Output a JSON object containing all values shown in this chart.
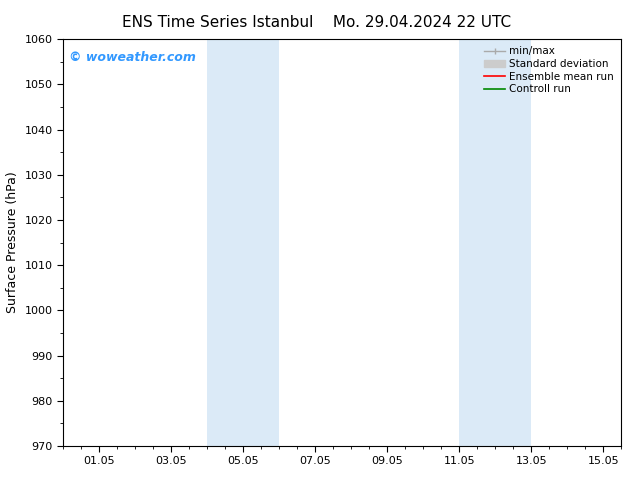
{
  "title_left": "ENS Time Series Istanbul",
  "title_right": "Mo. 29.04.2024 22 UTC",
  "ylabel": "Surface Pressure (hPa)",
  "ylim": [
    970,
    1060
  ],
  "yticks": [
    970,
    980,
    990,
    1000,
    1010,
    1020,
    1030,
    1040,
    1050,
    1060
  ],
  "xstart_day": 29.917,
  "xend_day": 15.5,
  "xlim_start": -0.1,
  "xlim_end": 15.6,
  "xtick_values": [
    1.0,
    3.0,
    5.0,
    7.0,
    9.0,
    11.0,
    13.0,
    15.0
  ],
  "xtick_labels": [
    "01.05",
    "03.05",
    "05.05",
    "07.05",
    "09.05",
    "11.05",
    "13.05",
    "15.05"
  ],
  "shaded_bands": [
    {
      "x_start": 4.0,
      "x_end": 6.0
    },
    {
      "x_start": 11.0,
      "x_end": 13.0
    }
  ],
  "shaded_color": "#dbeaf7",
  "background_color": "#ffffff",
  "watermark_text": "© woweather.com",
  "watermark_color": "#3399ff",
  "legend_items": [
    {
      "label": "min/max",
      "type": "minmax",
      "color": "#aaaaaa"
    },
    {
      "label": "Standard deviation",
      "type": "patch",
      "color": "#cccccc"
    },
    {
      "label": "Ensemble mean run",
      "type": "line",
      "color": "#ff0000"
    },
    {
      "label": "Controll run",
      "type": "line",
      "color": "#008800"
    }
  ],
  "tick_label_fontsize": 8,
  "axis_label_fontsize": 9,
  "title_fontsize": 11,
  "watermark_fontsize": 9,
  "legend_fontsize": 7.5
}
